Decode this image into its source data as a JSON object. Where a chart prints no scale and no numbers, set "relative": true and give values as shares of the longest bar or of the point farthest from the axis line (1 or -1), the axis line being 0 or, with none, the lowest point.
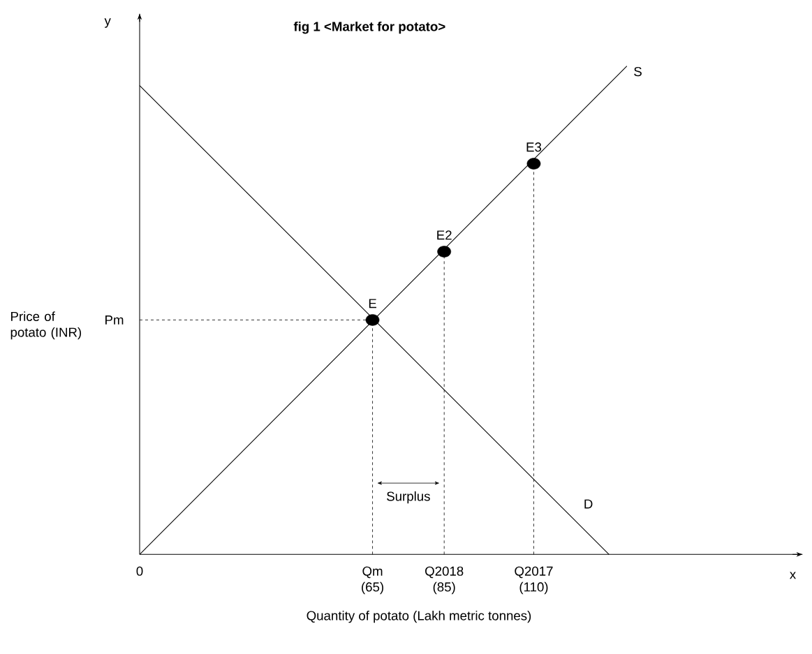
{
  "chart_data": {
    "type": "line",
    "title": "fig 1      <Market for potato>",
    "xlabel": "Quantity of potato (Lakh metric tonnes)",
    "ylabel": "Price of potato (INR)",
    "relative": true,
    "xlim": [
      0,
      185
    ],
    "xticks": [
      {
        "value": 0,
        "label": "0"
      },
      {
        "value": 65,
        "label": "Qm (65)"
      },
      {
        "value": 85,
        "label": "Q2018 (85)"
      },
      {
        "value": 110,
        "label": "Q2017 (110)"
      }
    ],
    "tick_labels": "x",
    "grid": false,
    "series": [
      {
        "name": "S",
        "color": "#000000",
        "x": [
          0,
          136
        ],
        "values": [
          0,
          1
        ]
      },
      {
        "name": "D",
        "color": "#000000",
        "x": [
          0,
          131
        ],
        "values": [
          0.96,
          0
        ]
      },
      {
        "type": "scatter",
        "color": "#000000",
        "x": [
          65,
          85,
          110
        ],
        "values": [
          0.48,
          0.62,
          0.8
        ]
      }
    ],
    "ref_lines": [
      {
        "axis": "y",
        "value": 0.48,
        "label": "Pm",
        "line_style": "dashed"
      },
      {
        "axis": "x",
        "value": 65,
        "line_style": "dashed"
      },
      {
        "axis": "x",
        "value": 85,
        "line_style": "dashed"
      },
      {
        "axis": "x",
        "value": 110,
        "line_style": "dashed"
      }
    ],
    "annotations": [
      {
        "text": "E",
        "x": 65,
        "y": 0.48
      },
      {
        "text": "E2",
        "x": 85,
        "y": 0.62
      },
      {
        "text": "E3",
        "x": 110,
        "y": 0.8
      },
      "Surplus",
      "x",
      "y"
    ]
  }
}
